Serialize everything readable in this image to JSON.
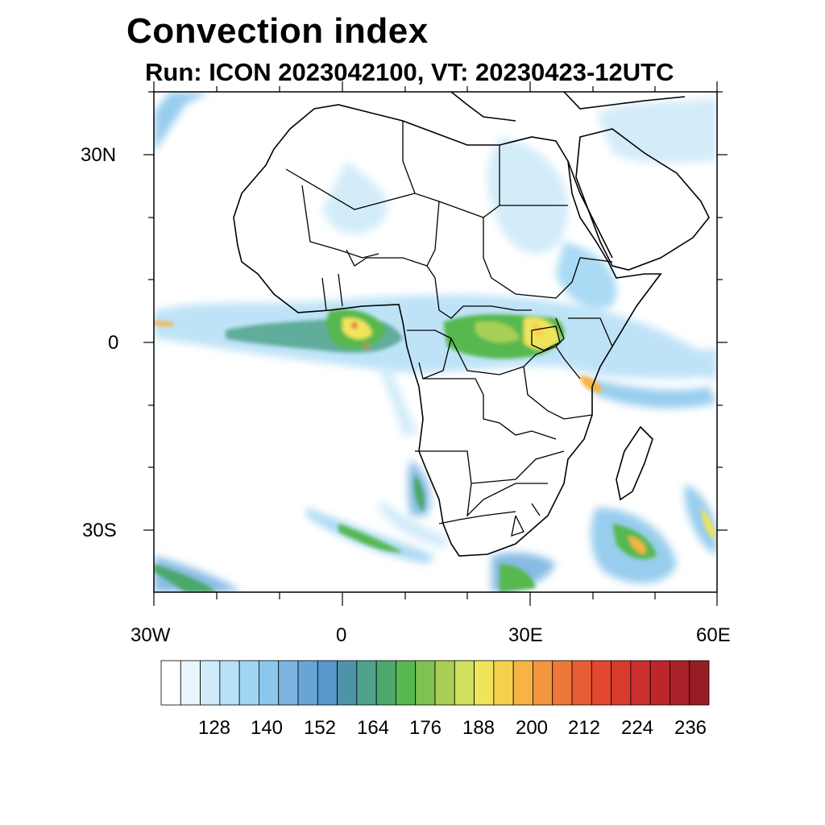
{
  "title": "Convection index",
  "subtitle": "Run: ICON 2023042100,  VT: 20230423-12UTC",
  "map": {
    "lat_labels": [
      "30N",
      "0",
      "30S"
    ],
    "lon_labels": [
      "30W",
      "0",
      "30E",
      "60E"
    ]
  },
  "colorbar": {
    "labels": [
      "128",
      "140",
      "152",
      "164",
      "176",
      "188",
      "200",
      "212",
      "224",
      "236"
    ],
    "colors": [
      "#ffffff",
      "#e8f5fd",
      "#cfeaf9",
      "#b8e0f7",
      "#a1d6f3",
      "#8cc8ec",
      "#7ab5e2",
      "#69a4d6",
      "#5996cb",
      "#4f93a8",
      "#4fa38c",
      "#4ca86b",
      "#57b84f",
      "#7fc152",
      "#a8cf54",
      "#d0e05a",
      "#efe55c",
      "#f5d04f",
      "#f5b445",
      "#f39640",
      "#ee783a",
      "#e85e34",
      "#e2472f",
      "#d93a2e",
      "#cc2f2d",
      "#bd262b",
      "#a92129",
      "#961d25"
    ]
  }
}
